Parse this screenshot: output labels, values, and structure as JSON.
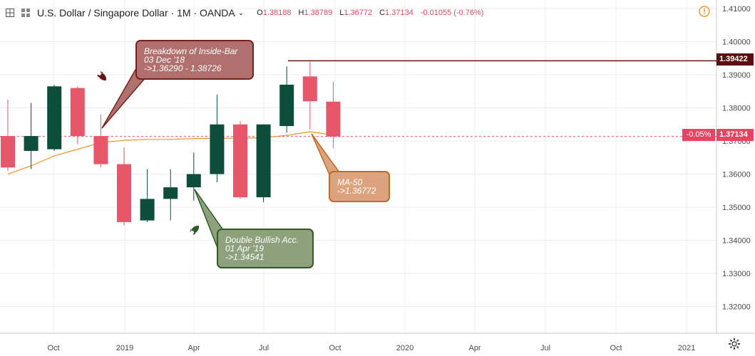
{
  "header": {
    "symbol_title": "U.S. Dollar / Singapore Dollar · 1M · OANDA",
    "open_label": "O",
    "open_value": "1.38188",
    "high_label": "H",
    "high_value": "1.38789",
    "low_label": "L",
    "low_value": "1.36772",
    "close_label": "C",
    "close_value": "1.37134",
    "change_value": "-0.01055 (-0.76%)"
  },
  "colors": {
    "bull": "#0d4d3b",
    "bear": "#e8566a",
    "ma_line": "#f0932b",
    "level_line": "#6b0f0f",
    "last_price_line": "#e54561",
    "axis_text": "#4a4a4a"
  },
  "icons": [
    "crosshair-grid-icon",
    "compare-icon",
    "chevron-down-icon",
    "alert-icon",
    "settings-gear-icon",
    "bearish-rocket-icon",
    "bullish-rocket-icon"
  ],
  "price_axis": {
    "ticks": [
      "1.41000",
      "1.40000",
      "1.39000",
      "1.38000",
      "1.37000",
      "1.36000",
      "1.35000",
      "1.34000",
      "1.33000",
      "1.32000"
    ]
  },
  "time_axis": {
    "labels": [
      "Oct",
      "2019",
      "Apr",
      "Jul",
      "Oct",
      "2020",
      "Apr",
      "Jul",
      "Oct",
      "2021"
    ]
  },
  "price_tags": {
    "level": "1.39422",
    "last_price": "1.37134",
    "pct": "-0.05%"
  },
  "annotations": {
    "breakdown": {
      "line1": "Breakdown of Inside-Bar",
      "line2": "03 Dec '18",
      "line3": "->1.36290 - 1.38726"
    },
    "bullish": {
      "line1": "Double Bullish Acc.",
      "line2": "01 Apr '19",
      "line3": "->1.34541"
    },
    "ma": {
      "line1": "MA-50",
      "line2": "->1.36772"
    }
  },
  "chart_data": {
    "type": "candlestick",
    "title": "U.S. Dollar / Singapore Dollar · 1M · OANDA",
    "timeframe": "1M",
    "ylim": [
      1.312,
      1.412
    ],
    "candles": [
      {
        "period": "2018-08",
        "open": 1.3715,
        "high": 1.3825,
        "low": 1.361,
        "close": 1.362
      },
      {
        "period": "2018-09",
        "open": 1.367,
        "high": 1.3815,
        "low": 1.3615,
        "close": 1.3715
      },
      {
        "period": "2018-10",
        "open": 1.3675,
        "high": 1.387,
        "low": 1.367,
        "close": 1.3865
      },
      {
        "period": "2018-11",
        "open": 1.386,
        "high": 1.3865,
        "low": 1.369,
        "close": 1.3715
      },
      {
        "period": "2018-12",
        "open": 1.3715,
        "high": 1.378,
        "low": 1.362,
        "close": 1.363
      },
      {
        "period": "2019-01",
        "open": 1.363,
        "high": 1.368,
        "low": 1.3445,
        "close": 1.3455
      },
      {
        "period": "2019-02",
        "open": 1.346,
        "high": 1.3615,
        "low": 1.3455,
        "close": 1.3525
      },
      {
        "period": "2019-03",
        "open": 1.3525,
        "high": 1.3615,
        "low": 1.346,
        "close": 1.356
      },
      {
        "period": "2019-04",
        "open": 1.356,
        "high": 1.3665,
        "low": 1.352,
        "close": 1.36
      },
      {
        "period": "2019-05",
        "open": 1.36,
        "high": 1.384,
        "low": 1.3575,
        "close": 1.375
      },
      {
        "period": "2019-06",
        "open": 1.375,
        "high": 1.376,
        "low": 1.3525,
        "close": 1.353
      },
      {
        "period": "2019-07",
        "open": 1.353,
        "high": 1.375,
        "low": 1.3515,
        "close": 1.375
      },
      {
        "period": "2019-08",
        "open": 1.3745,
        "high": 1.3925,
        "low": 1.3725,
        "close": 1.387
      },
      {
        "period": "2019-09",
        "open": 1.3895,
        "high": 1.394,
        "low": 1.3735,
        "close": 1.382
      },
      {
        "period": "2019-10",
        "open": 1.38188,
        "high": 1.38789,
        "low": 1.36772,
        "close": 1.37134
      }
    ],
    "ma50": [
      1.36,
      1.3625,
      1.3655,
      1.3675,
      1.3695,
      1.3702,
      1.3705,
      1.3705,
      1.3707,
      1.3708,
      1.3708,
      1.371,
      1.3717,
      1.3728,
      1.3718
    ],
    "horizontal_level": 1.39422,
    "last_price": 1.37134
  }
}
